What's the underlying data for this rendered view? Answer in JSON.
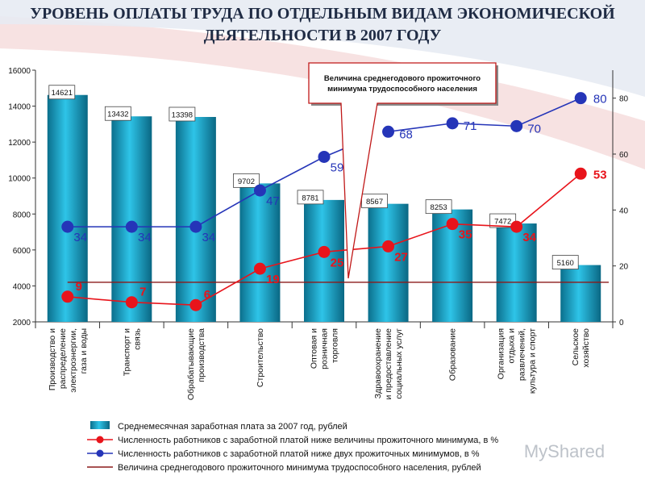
{
  "page_title": "УРОВЕНЬ ОПЛАТЫ ТРУДА ПО ОТДЕЛЬНЫМ ВИДАМ ЭКОНОМИЧЕСКОЙ ДЕЯТЕЛЬНОСТИ В 2007 ГОДУ",
  "watermark": "MyShared",
  "chart_data": {
    "type": "bar",
    "title": "УРОВЕНЬ ОПЛАТЫ ТРУДА ПО ОТДЕЛЬНЫМ ВИДАМ ЭКОНОМИЧЕСКОЙ ДЕЯТЕЛЬНОСТИ В 2007 ГОДУ",
    "categories": [
      [
        "Производство и",
        "распределение",
        "электроэнергии,",
        "газа и воды"
      ],
      [
        "Транспорт и",
        "связь"
      ],
      [
        "Обрабатывающие",
        "производства"
      ],
      [
        "Строительство"
      ],
      [
        "Оптовая и",
        "розничная",
        "торговля"
      ],
      [
        "Здравоохранение",
        "и предоставление",
        "социальных услуг"
      ],
      [
        "Образование"
      ],
      [
        "Организация",
        "отдыха и",
        "развлечений,",
        "культура и спорт"
      ],
      [
        "Сельское",
        "хозяйство"
      ]
    ],
    "ylim_left": [
      2000,
      16000
    ],
    "yticks_left": [
      2000,
      4000,
      6000,
      8000,
      10000,
      12000,
      14000,
      16000
    ],
    "ylim_right": [
      0,
      90
    ],
    "yticks_right": [
      0,
      20,
      40,
      60,
      80
    ],
    "grid": false,
    "legend_position": "bottom",
    "series": [
      {
        "name": "Среднемесячная заработная плата за 2007 год, рублей",
        "kind": "bar",
        "axis": "left",
        "color": "#1aa6c9",
        "values": [
          14621,
          13432,
          13398,
          9702,
          8781,
          8567,
          8253,
          7472,
          5160
        ]
      },
      {
        "name": "Численность работников с заработной платой ниже величины прожиточного минимума, в %",
        "kind": "line",
        "axis": "right",
        "color": "#e8141b",
        "values": [
          9,
          7,
          6,
          19,
          25,
          27,
          35,
          34,
          53
        ]
      },
      {
        "name": "Численность работников с заработной платой ниже двух прожиточных минимумов, в %",
        "kind": "line",
        "axis": "right",
        "color": "#2535b8",
        "values": [
          34,
          34,
          34,
          47,
          59,
          68,
          71,
          70,
          80
        ]
      },
      {
        "name": "Величина среднегодового прожиточного минимума трудоспособного населения, рублей",
        "kind": "hline",
        "axis": "left",
        "color": "#8b1a1a",
        "value": 4200
      }
    ],
    "annotation": "Величина среднегодового прожиточного минимума трудоспособного населения"
  }
}
